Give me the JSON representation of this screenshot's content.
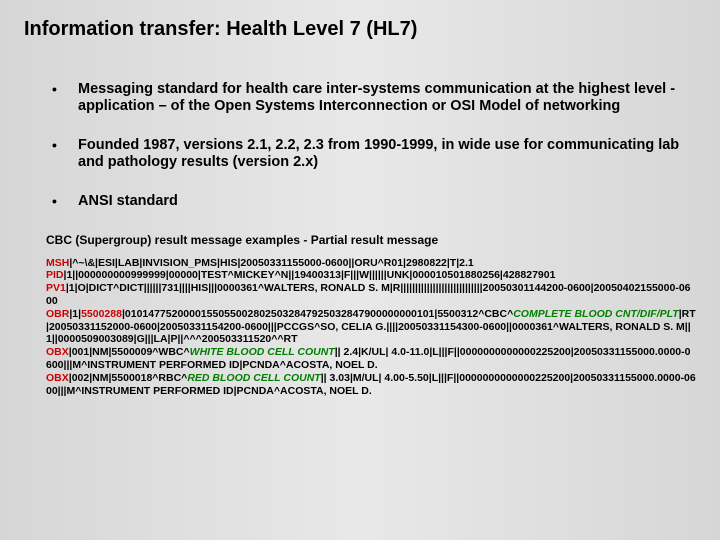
{
  "title": "Information transfer: Health Level 7 (HL7)",
  "colors": {
    "red": "#cc0000",
    "green": "#008000",
    "bg_mid": "#e8e8e8",
    "bg_edge": "#d6d6d6"
  },
  "fonts": {
    "title_pt": 20,
    "bullet_pt": 14.5,
    "subhead_pt": 12,
    "msg_pt": 10.5
  },
  "bullets": [
    "Messaging standard for health care inter-systems communication at the highest level - application – of the Open Systems Interconnection or OSI Model of networking",
    "Founded 1987, versions 2.1, 2.2, 2.3 from 1990-1999, in wide use for communicating lab and pathology results (version 2.x)",
    "ANSI standard"
  ],
  "subhead": "CBC (Supergroup) result message examples  - Partial result message",
  "msg": {
    "l1a": "MSH",
    "l1b": "|^~\\&|ESI|LAB|INVISION_PMS|HIS|20050331155000-0600||ORU^R01|2980822|T|2.1",
    "l2a": "PID",
    "l2b": "|1||000000000999999|00000|TEST^MICKEY^N||19400313|F|||W||||||UNK|000010501880256|428827901",
    "l3a": "PV1",
    "l3b": "|1|O|DICT^DICT||||||731||||HIS|||0000361^WALTERS, RONALD S. M|R||||||||||||||||||||||||||||20050301144200-0600|20050402155000-0600",
    "l4a": "OBR",
    "l4b": "|1|",
    "l4c": "5500288",
    "l4d": "|01014775200001550550028025032847925032847900000000101|5500312^CBC^",
    "l4e": "COMPLETE BLOOD CNT/DIF/PLT",
    "l4f": "|RT|20050331152000-0600|20050331154200-0600|||PCCGS^SO, CELIA G.||||20050331154300-0600||0000361^WALTERS, RONALD S. M||1||0000509003089|G|||LA|P||^^^200503311520^^RT",
    "l5a": "OBX",
    "l5b": "|001|NM|5500009^WBC^",
    "l5c": "WHITE BLOOD CELL COUNT",
    "l5d": "||    2.4|K/UL|    4.0-11.0|L|||F||0000000000000225200|20050331155000.0000-0600|||M^INSTRUMENT PERFORMED ID|PCNDA^ACOSTA, NOEL D.",
    "l6a": "OBX",
    "l6b": "|002|NM|5500018^RBC^",
    "l6c": "RED BLOOD CELL COUNT",
    "l6d": "||    3.03|M/UL|    4.00-5.50|L|||F||0000000000000225200|20050331155000.0000-0600|||M^INSTRUMENT PERFORMED ID|PCNDA^ACOSTA, NOEL D."
  }
}
